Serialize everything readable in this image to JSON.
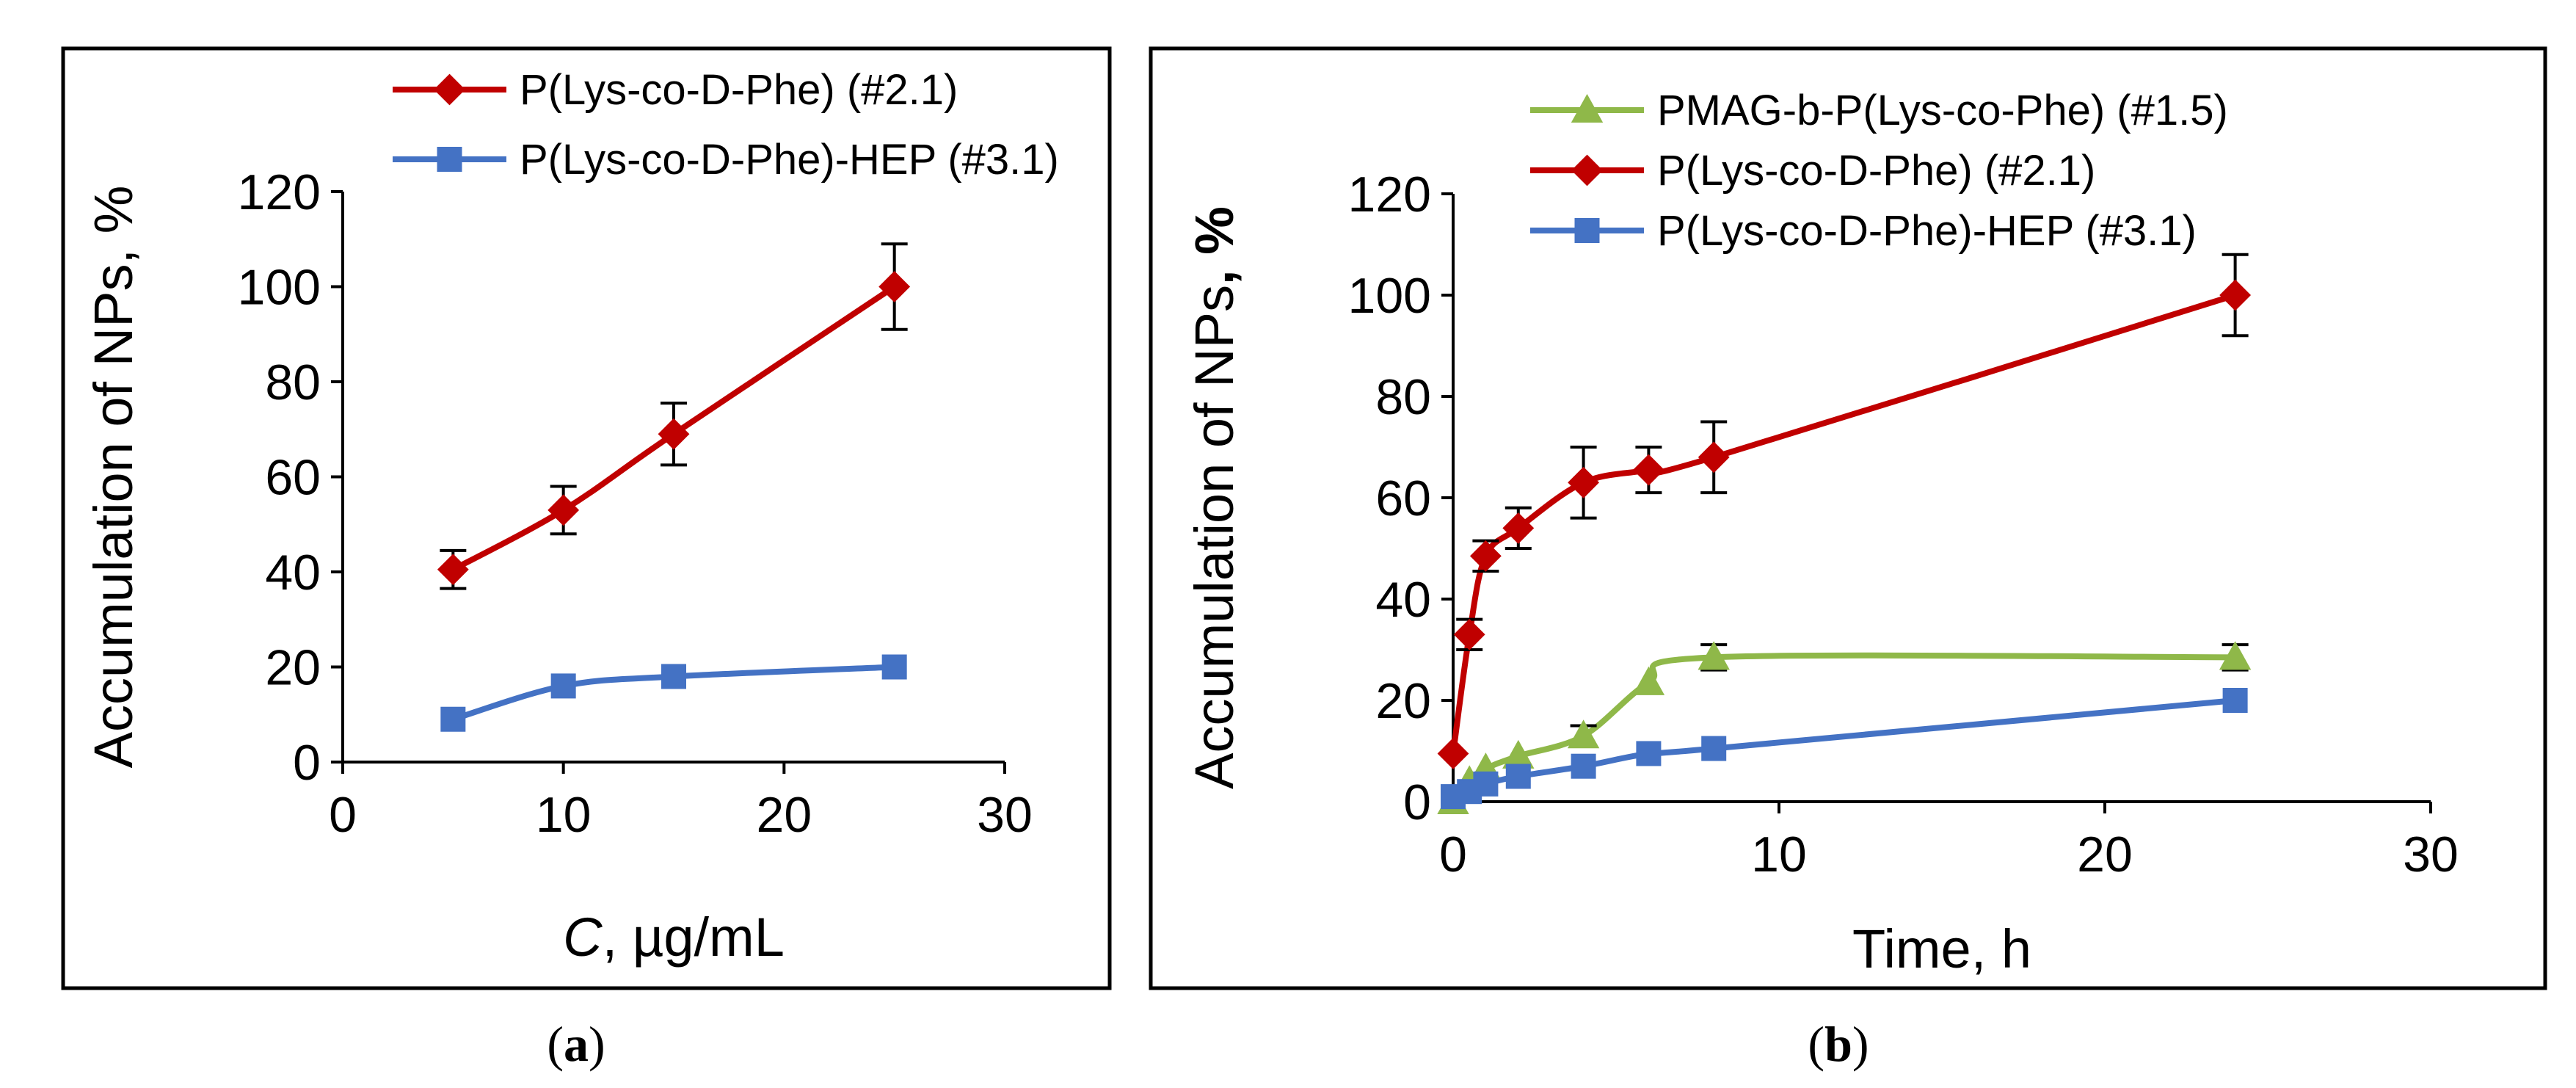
{
  "chart_data": [
    {
      "id": "a",
      "type": "line",
      "caption": "a",
      "xlabel": "C, µg/mL",
      "xlabel_italic_part": "C",
      "xlabel_rest": ", µg/mL",
      "ylabel": "Accumulation of NPs, %",
      "xlim": [
        0,
        30
      ],
      "ylim": [
        0,
        120
      ],
      "xticks": [
        0,
        10,
        20,
        30
      ],
      "yticks": [
        0,
        20,
        40,
        60,
        80,
        100,
        120
      ],
      "legend_position": "top",
      "series": [
        {
          "name": "P(Lys-co-D-Phe) (#2.1)",
          "color": "#C00000",
          "marker": "diamond",
          "x": [
            5,
            10,
            15,
            25
          ],
          "y": [
            40.5,
            53,
            69,
            100
          ],
          "err": [
            4,
            5,
            6.5,
            9
          ]
        },
        {
          "name": "P(Lys-co-D-Phe)-HEP (#3.1)",
          "color": "#4472C4",
          "marker": "square",
          "x": [
            5,
            10,
            15,
            25
          ],
          "y": [
            9,
            16,
            18,
            20
          ],
          "err": null
        }
      ]
    },
    {
      "id": "b",
      "type": "line",
      "caption": "b",
      "xlabel": "Time, h",
      "ylabel": "Accumulation of NPs, %",
      "ylabel_main": "Accumulation of NPs",
      "ylabel_bold_part": ", %",
      "xlim": [
        0,
        30
      ],
      "ylim": [
        0,
        120
      ],
      "xticks": [
        0,
        10,
        20,
        30
      ],
      "yticks": [
        0,
        20,
        40,
        60,
        80,
        100,
        120
      ],
      "legend_position": "top",
      "series": [
        {
          "name": "PMAG-b-P(Lys-co-Phe) (#1.5)",
          "color": "#8FB849",
          "marker": "triangle",
          "x": [
            0,
            0.5,
            1,
            2,
            4,
            6,
            8,
            24
          ],
          "y": [
            0,
            4,
            6.5,
            9,
            13,
            23.5,
            28.5,
            28.5
          ],
          "err": [
            0,
            0,
            0,
            0,
            2,
            0,
            2.5,
            2.5
          ]
        },
        {
          "name": "P(Lys-co-D-Phe) (#2.1)",
          "color": "#C00000",
          "marker": "diamond",
          "x": [
            0,
            0.5,
            1,
            2,
            4,
            6,
            8,
            24
          ],
          "y": [
            9.5,
            33,
            48.5,
            54,
            63,
            65.5,
            68,
            100
          ],
          "err": [
            0,
            3,
            3,
            4,
            7,
            4.5,
            7,
            8
          ]
        },
        {
          "name": "P(Lys-co-D-Phe)-HEP (#3.1)",
          "color": "#4472C4",
          "marker": "square",
          "x": [
            0,
            0.5,
            1,
            2,
            4,
            6,
            8,
            24
          ],
          "y": [
            1,
            2,
            3.5,
            5,
            7,
            9.5,
            10.5,
            20
          ],
          "err": null
        }
      ]
    }
  ]
}
